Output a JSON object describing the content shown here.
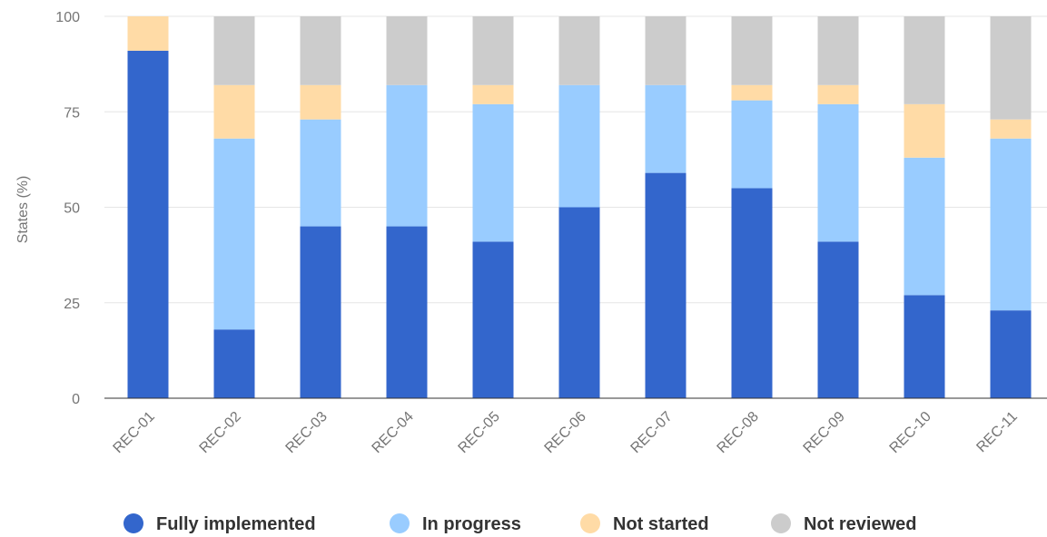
{
  "chart_data": {
    "type": "bar",
    "stacked": true,
    "title": "",
    "xlabel": "",
    "ylabel": "States (%)",
    "ylim": [
      0,
      100
    ],
    "yticks": [
      0,
      25,
      50,
      75,
      100
    ],
    "grid": true,
    "legend_position": "bottom",
    "categories": [
      "REC-01",
      "REC-02",
      "REC-03",
      "REC-04",
      "REC-05",
      "REC-06",
      "REC-07",
      "REC-08",
      "REC-09",
      "REC-10",
      "REC-11"
    ],
    "series": [
      {
        "name": "Fully implemented",
        "color": "#3366cc",
        "values": [
          91,
          18,
          45,
          45,
          41,
          50,
          59,
          55,
          41,
          27,
          23
        ]
      },
      {
        "name": "In progress",
        "color": "#99ccff",
        "values": [
          0,
          50,
          28,
          37,
          36,
          32,
          23,
          23,
          36,
          36,
          45
        ]
      },
      {
        "name": "Not started",
        "color": "#ffdba6",
        "values": [
          9,
          14,
          9,
          0,
          5,
          0,
          0,
          4,
          5,
          14,
          5
        ]
      },
      {
        "name": "Not reviewed",
        "color": "#cccccc",
        "values": [
          0,
          18,
          18,
          18,
          18,
          18,
          18,
          18,
          18,
          23,
          27
        ]
      }
    ]
  }
}
